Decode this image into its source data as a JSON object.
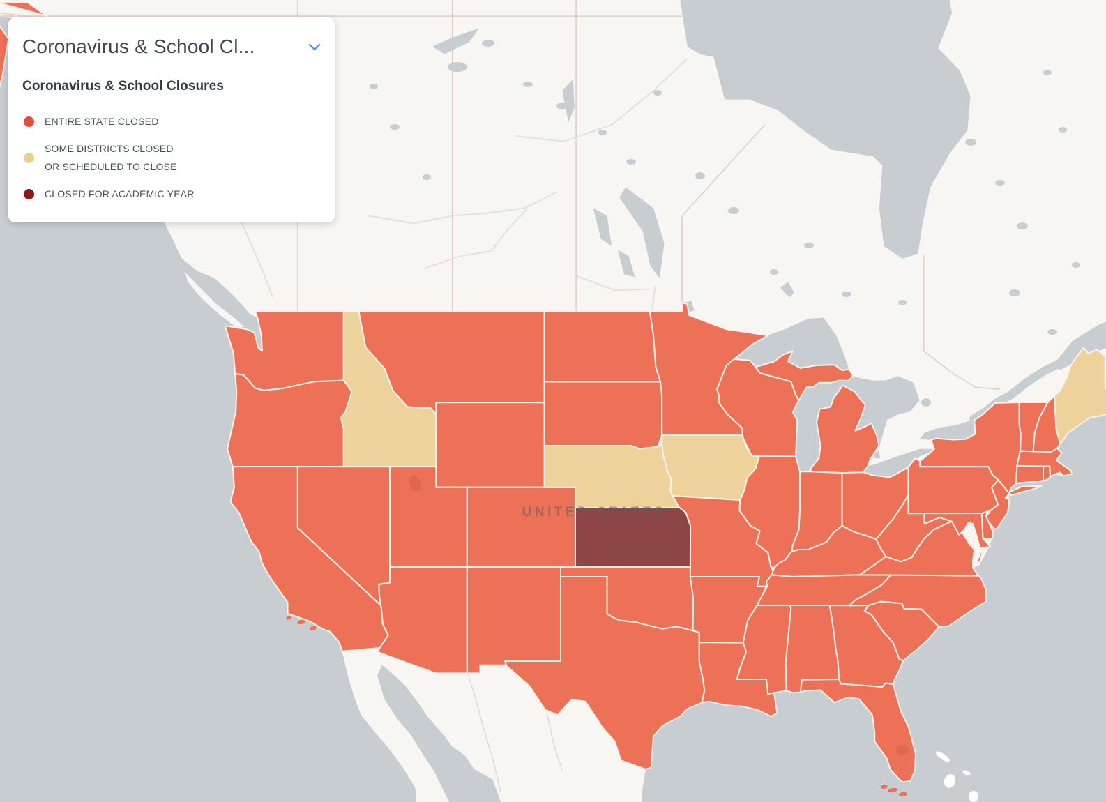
{
  "panel": {
    "selector_label": "Coronavirus & School Cl...",
    "legend_title": "Coronavirus & School Closures",
    "legend_items": [
      {
        "status": "entire_state_closed",
        "label": "ENTIRE STATE CLOSED",
        "color": "#e2503c"
      },
      {
        "status": "some_districts_closed",
        "label": "SOME DISTRICTS CLOSED\nOR SCHEDULED TO CLOSE",
        "color": "#ecce92"
      },
      {
        "status": "closed_academic_year",
        "label": "CLOSED FOR ACADEMIC YEAR",
        "color": "#8b1a1a"
      }
    ]
  },
  "map": {
    "country_label": "UNITED STATES",
    "water_color": "#c8cdd2",
    "land_color": "#f7f6f3",
    "state_border_color": "#f9f2ec",
    "status_fills": {
      "entire_state_closed": "#ed7157",
      "some_districts_closed": "#edd29b",
      "closed_academic_year": "#8e4545"
    },
    "states": [
      {
        "id": "WA",
        "name": "Washington",
        "status": "entire_state_closed"
      },
      {
        "id": "OR",
        "name": "Oregon",
        "status": "entire_state_closed"
      },
      {
        "id": "CA",
        "name": "California",
        "status": "entire_state_closed"
      },
      {
        "id": "NV",
        "name": "Nevada",
        "status": "entire_state_closed"
      },
      {
        "id": "ID",
        "name": "Idaho",
        "status": "some_districts_closed"
      },
      {
        "id": "MT",
        "name": "Montana",
        "status": "entire_state_closed"
      },
      {
        "id": "WY",
        "name": "Wyoming",
        "status": "entire_state_closed"
      },
      {
        "id": "UT",
        "name": "Utah",
        "status": "entire_state_closed"
      },
      {
        "id": "CO",
        "name": "Colorado",
        "status": "entire_state_closed"
      },
      {
        "id": "AZ",
        "name": "Arizona",
        "status": "entire_state_closed"
      },
      {
        "id": "NM",
        "name": "New Mexico",
        "status": "entire_state_closed"
      },
      {
        "id": "ND",
        "name": "North Dakota",
        "status": "entire_state_closed"
      },
      {
        "id": "SD",
        "name": "South Dakota",
        "status": "entire_state_closed"
      },
      {
        "id": "NE",
        "name": "Nebraska",
        "status": "some_districts_closed"
      },
      {
        "id": "KS",
        "name": "Kansas",
        "status": "closed_academic_year"
      },
      {
        "id": "OK",
        "name": "Oklahoma",
        "status": "entire_state_closed"
      },
      {
        "id": "TX",
        "name": "Texas",
        "status": "entire_state_closed"
      },
      {
        "id": "MN",
        "name": "Minnesota",
        "status": "entire_state_closed"
      },
      {
        "id": "IA",
        "name": "Iowa",
        "status": "some_districts_closed"
      },
      {
        "id": "MO",
        "name": "Missouri",
        "status": "entire_state_closed"
      },
      {
        "id": "AR",
        "name": "Arkansas",
        "status": "entire_state_closed"
      },
      {
        "id": "LA",
        "name": "Louisiana",
        "status": "entire_state_closed"
      },
      {
        "id": "WI",
        "name": "Wisconsin",
        "status": "entire_state_closed"
      },
      {
        "id": "IL",
        "name": "Illinois",
        "status": "entire_state_closed"
      },
      {
        "id": "MI",
        "name": "Michigan",
        "status": "entire_state_closed"
      },
      {
        "id": "IN",
        "name": "Indiana",
        "status": "entire_state_closed"
      },
      {
        "id": "OH",
        "name": "Ohio",
        "status": "entire_state_closed"
      },
      {
        "id": "KY",
        "name": "Kentucky",
        "status": "entire_state_closed"
      },
      {
        "id": "TN",
        "name": "Tennessee",
        "status": "entire_state_closed"
      },
      {
        "id": "MS",
        "name": "Mississippi",
        "status": "entire_state_closed"
      },
      {
        "id": "AL",
        "name": "Alabama",
        "status": "entire_state_closed"
      },
      {
        "id": "GA",
        "name": "Georgia",
        "status": "entire_state_closed"
      },
      {
        "id": "FL",
        "name": "Florida",
        "status": "entire_state_closed"
      },
      {
        "id": "SC",
        "name": "South Carolina",
        "status": "entire_state_closed"
      },
      {
        "id": "NC",
        "name": "North Carolina",
        "status": "entire_state_closed"
      },
      {
        "id": "VA",
        "name": "Virginia",
        "status": "entire_state_closed"
      },
      {
        "id": "WV",
        "name": "West Virginia",
        "status": "entire_state_closed"
      },
      {
        "id": "PA",
        "name": "Pennsylvania",
        "status": "entire_state_closed"
      },
      {
        "id": "NY",
        "name": "New York",
        "status": "entire_state_closed"
      },
      {
        "id": "NJ",
        "name": "New Jersey",
        "status": "entire_state_closed"
      },
      {
        "id": "DE",
        "name": "Delaware",
        "status": "entire_state_closed"
      },
      {
        "id": "MD",
        "name": "Maryland",
        "status": "entire_state_closed"
      },
      {
        "id": "CT",
        "name": "Connecticut",
        "status": "entire_state_closed"
      },
      {
        "id": "RI",
        "name": "Rhode Island",
        "status": "entire_state_closed"
      },
      {
        "id": "MA",
        "name": "Massachusetts",
        "status": "entire_state_closed"
      },
      {
        "id": "VT",
        "name": "Vermont",
        "status": "entire_state_closed"
      },
      {
        "id": "NH",
        "name": "New Hampshire",
        "status": "entire_state_closed"
      },
      {
        "id": "ME",
        "name": "Maine",
        "status": "some_districts_closed"
      },
      {
        "id": "AK",
        "name": "Alaska",
        "status": "entire_state_closed"
      }
    ]
  }
}
